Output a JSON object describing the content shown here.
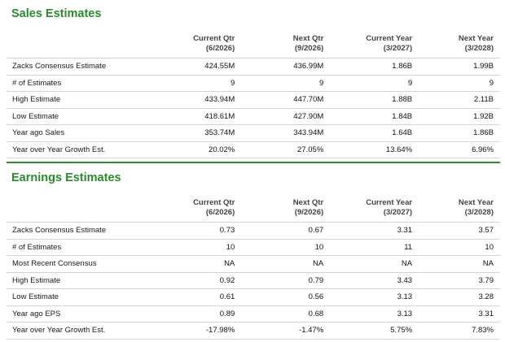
{
  "columns": [
    {
      "line1": "Current Qtr",
      "line2": "(6/2026)"
    },
    {
      "line1": "Next Qtr",
      "line2": "(9/2026)"
    },
    {
      "line1": "Current Year",
      "line2": "(3/2027)"
    },
    {
      "line1": "Next Year",
      "line2": "(3/2028)"
    }
  ],
  "sales": {
    "title": "Sales Estimates",
    "rows": [
      {
        "label": "Zacks Consensus Estimate",
        "values": [
          "424.55M",
          "436.99M",
          "1.86B",
          "1.99B"
        ]
      },
      {
        "label": "# of Estimates",
        "values": [
          "9",
          "9",
          "9",
          "9"
        ]
      },
      {
        "label": "High Estimate",
        "values": [
          "433.94M",
          "447.70M",
          "1.88B",
          "2.11B"
        ]
      },
      {
        "label": "Low Estimate",
        "values": [
          "418.61M",
          "427.90M",
          "1.84B",
          "1.92B"
        ]
      },
      {
        "label": "Year ago Sales",
        "values": [
          "353.74M",
          "343.94M",
          "1.64B",
          "1.86B"
        ]
      },
      {
        "label": "Year over Year Growth Est.",
        "values": [
          "20.02%",
          "27.05%",
          "13.64%",
          "6.96%"
        ]
      }
    ]
  },
  "earnings": {
    "title": "Earnings Estimates",
    "rows": [
      {
        "label": "Zacks Consensus Estimate",
        "values": [
          "0.73",
          "0.67",
          "3.31",
          "3.57"
        ]
      },
      {
        "label": "# of Estimates",
        "values": [
          "10",
          "10",
          "11",
          "10"
        ]
      },
      {
        "label": "Most Recent Consensus",
        "values": [
          "NA",
          "NA",
          "NA",
          "NA"
        ]
      },
      {
        "label": "High Estimate",
        "values": [
          "0.92",
          "0.79",
          "3.43",
          "3.79"
        ]
      },
      {
        "label": "Low Estimate",
        "values": [
          "0.61",
          "0.56",
          "3.13",
          "3.28"
        ]
      },
      {
        "label": "Year ago EPS",
        "values": [
          "0.89",
          "0.68",
          "3.13",
          "3.31"
        ]
      },
      {
        "label": "Year over Year Growth Est.",
        "values": [
          "-17.98%",
          "-1.47%",
          "5.75%",
          "7.83%"
        ]
      }
    ]
  },
  "colors": {
    "title_green": "#2b8a2b",
    "divider_green": "#2e8b2e",
    "row_border": "#d4d4d4"
  }
}
